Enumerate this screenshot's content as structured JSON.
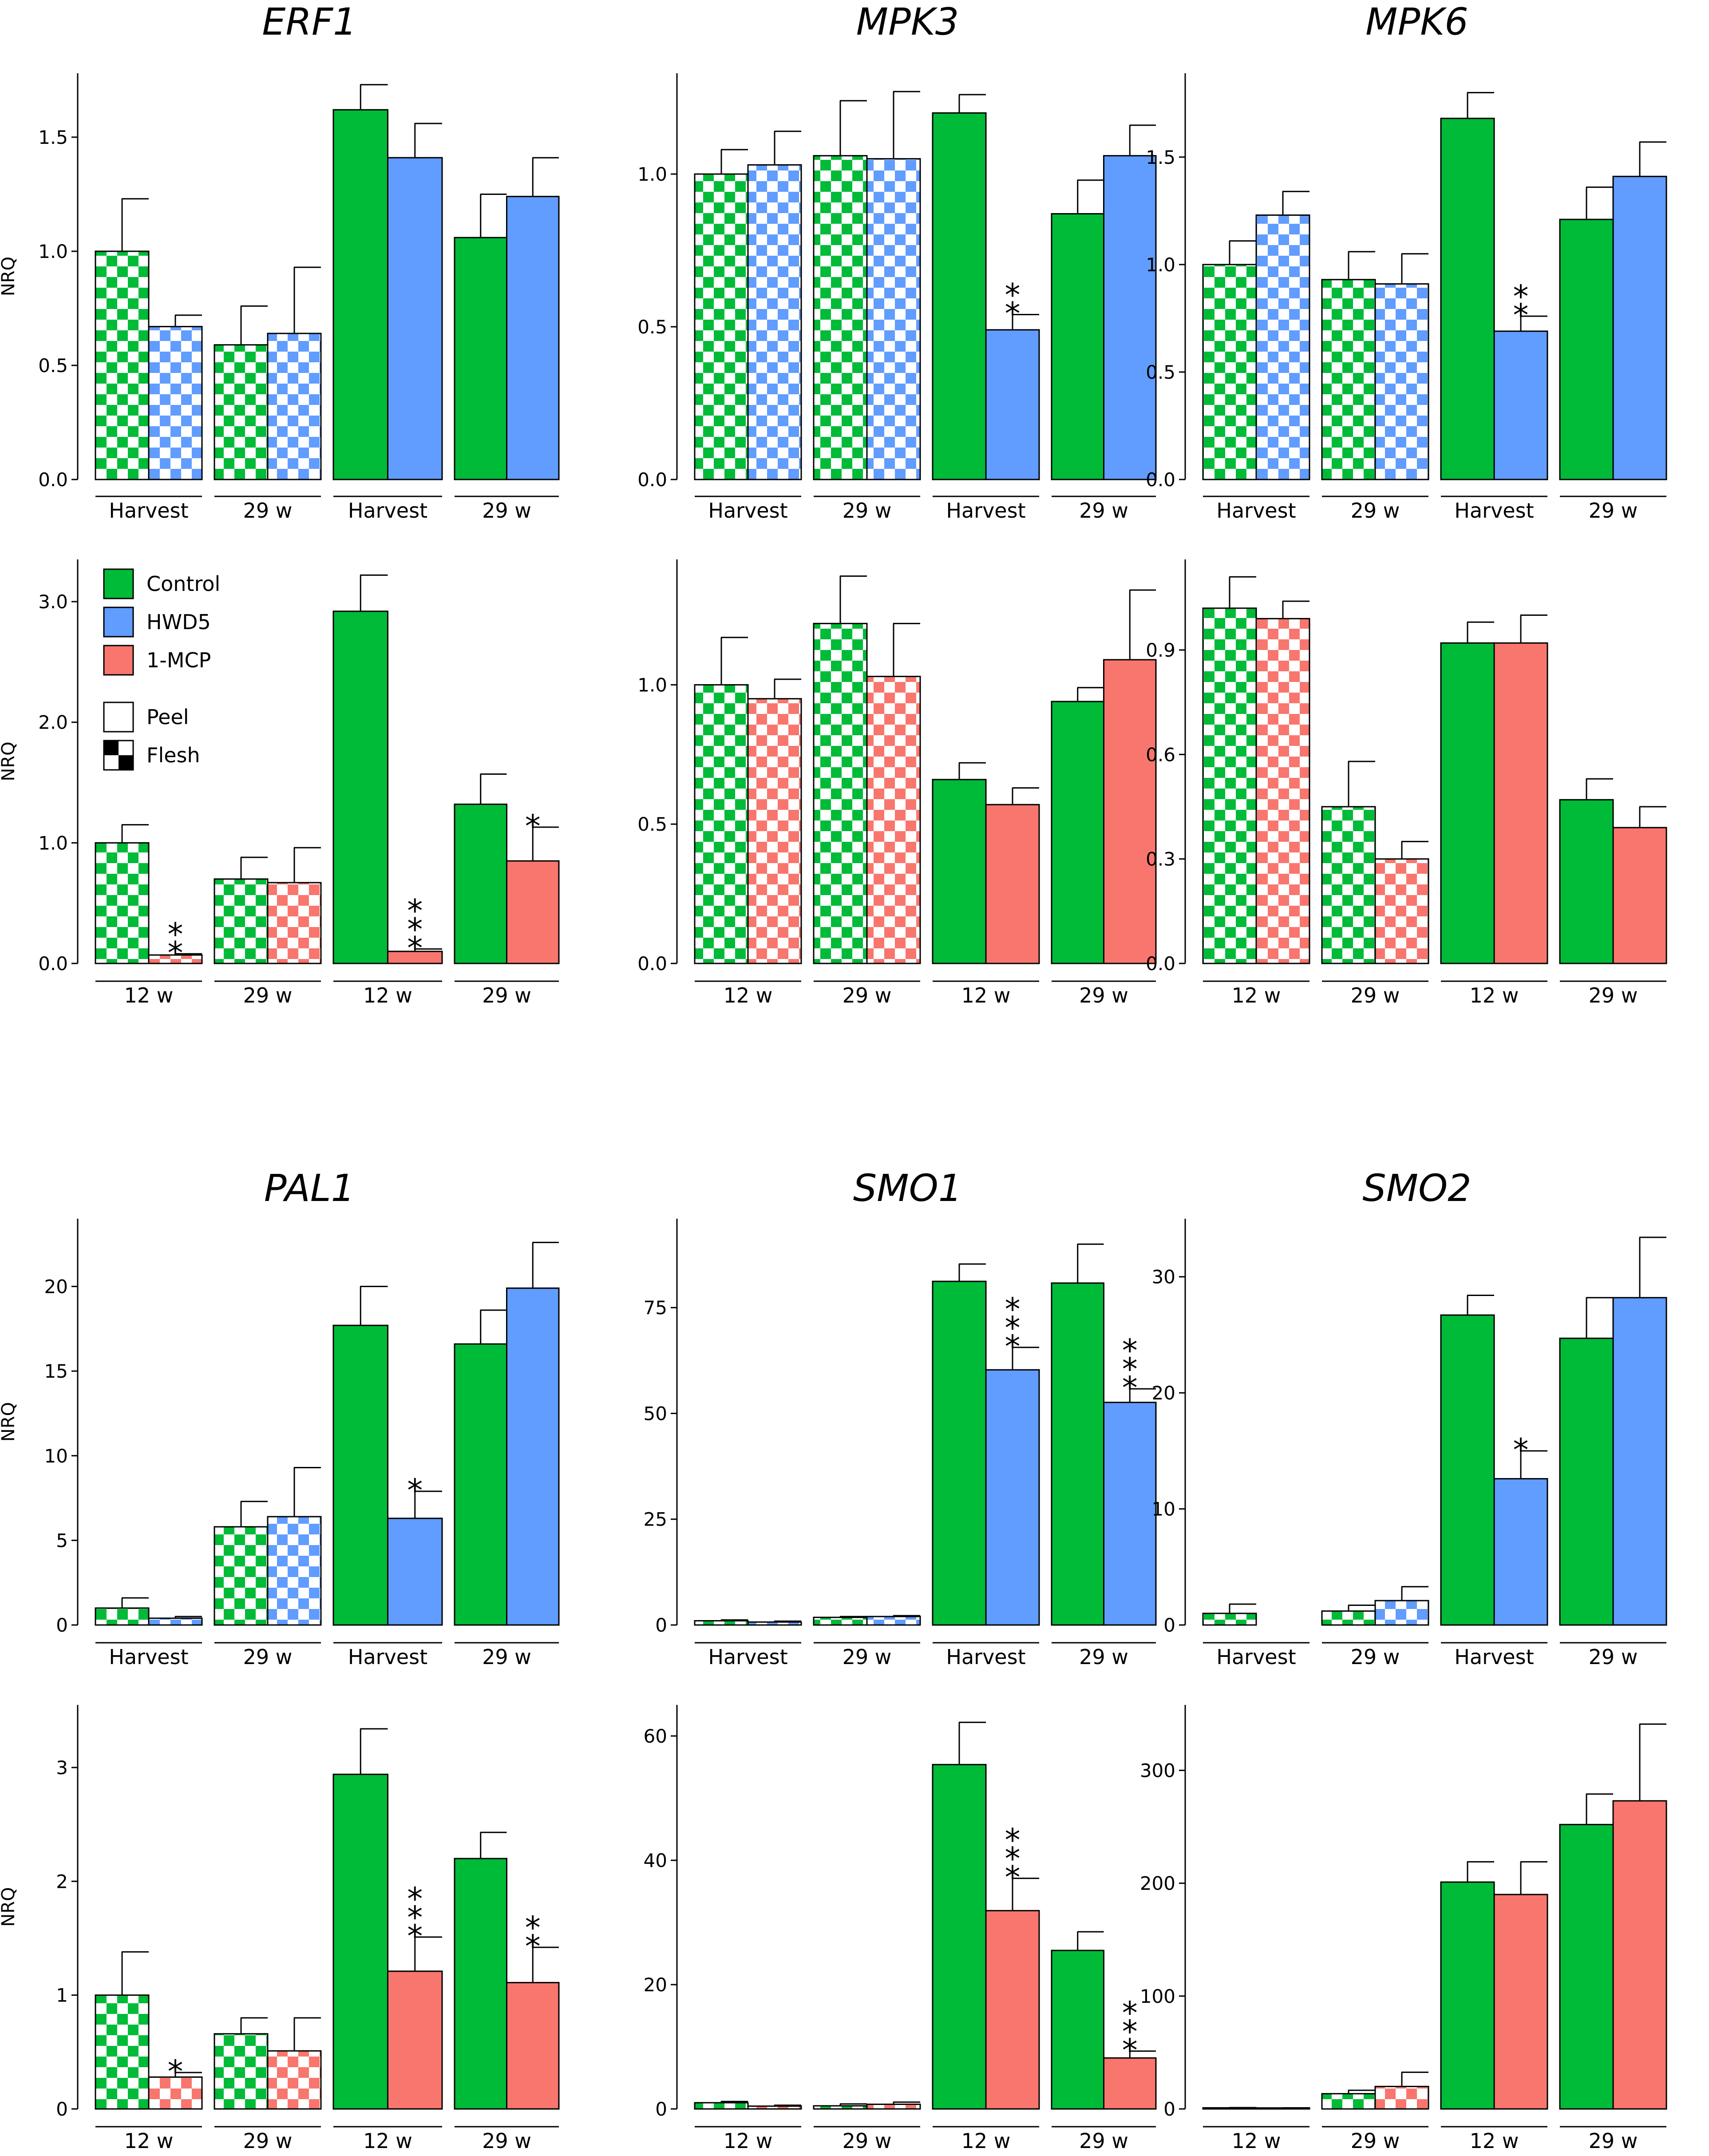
{
  "figure": {
    "ylabel": "NRQ"
  },
  "legend": {
    "treatments": [
      {
        "label": "Control",
        "color": "#00BB38"
      },
      {
        "label": "HWD5",
        "color": "#619CFF"
      },
      {
        "label": "1-MCP",
        "color": "#F8766D"
      }
    ],
    "tissues": [
      {
        "label": "Peel",
        "pattern": "solid"
      },
      {
        "label": "Flesh",
        "pattern": "checker"
      }
    ]
  },
  "colors": {
    "control": "#00BB38",
    "hwd5": "#619CFF",
    "mcp": "#F8766D"
  },
  "chart_data": [
    {
      "type": "bar",
      "gene": "ERF1",
      "title": "ERF1",
      "row": 0,
      "col": 0,
      "treatment": "hwd5",
      "show_ylabel": true,
      "groups": [
        "Harvest",
        "29 w",
        "Harvest",
        "29 w"
      ],
      "tissue": [
        "flesh",
        "flesh",
        "peel",
        "peel"
      ],
      "values": [
        [
          1.0,
          0.67
        ],
        [
          0.59,
          0.64
        ],
        [
          1.62,
          1.41
        ],
        [
          1.06,
          1.24
        ]
      ],
      "errors": [
        [
          1.23,
          0.72
        ],
        [
          0.76,
          0.93
        ],
        [
          1.73,
          1.56
        ],
        [
          1.25,
          1.41
        ]
      ],
      "significance": [
        [
          "",
          ""
        ],
        [
          "",
          ""
        ],
        [
          "",
          ""
        ],
        [
          "",
          ""
        ]
      ],
      "ylim": [
        0,
        1.78
      ],
      "yticks": [
        0.0,
        0.5,
        1.0,
        1.5
      ],
      "tick_labels": [
        "0.0",
        "0.5",
        "1.0",
        "1.5"
      ]
    },
    {
      "type": "bar",
      "gene": "MPK3",
      "title": "MPK3",
      "row": 0,
      "col": 1,
      "treatment": "hwd5",
      "show_ylabel": false,
      "groups": [
        "Harvest",
        "29 w",
        "Harvest",
        "29 w"
      ],
      "tissue": [
        "flesh",
        "flesh",
        "peel",
        "peel"
      ],
      "values": [
        [
          1.0,
          1.03
        ],
        [
          1.06,
          1.05
        ],
        [
          1.2,
          0.49
        ],
        [
          0.87,
          1.06
        ]
      ],
      "errors": [
        [
          1.08,
          1.14
        ],
        [
          1.24,
          1.27
        ],
        [
          1.26,
          0.54
        ],
        [
          0.98,
          1.16
        ]
      ],
      "significance": [
        [
          "",
          ""
        ],
        [
          "",
          ""
        ],
        [
          "",
          "**"
        ],
        [
          "",
          ""
        ]
      ],
      "ylim": [
        0,
        1.33
      ],
      "yticks": [
        0.0,
        0.5,
        1.0
      ],
      "tick_labels": [
        "0.0",
        "0.5",
        "1.0"
      ]
    },
    {
      "type": "bar",
      "gene": "MPK6",
      "title": "MPK6",
      "row": 0,
      "col": 2,
      "treatment": "hwd5",
      "show_ylabel": false,
      "groups": [
        "Harvest",
        "29 w",
        "Harvest",
        "29 w"
      ],
      "tissue": [
        "flesh",
        "flesh",
        "peel",
        "peel"
      ],
      "values": [
        [
          1.0,
          1.23
        ],
        [
          0.93,
          0.91
        ],
        [
          1.68,
          0.69
        ],
        [
          1.21,
          1.41
        ]
      ],
      "errors": [
        [
          1.11,
          1.34
        ],
        [
          1.06,
          1.05
        ],
        [
          1.8,
          0.76
        ],
        [
          1.36,
          1.57
        ]
      ],
      "significance": [
        [
          "",
          ""
        ],
        [
          "",
          ""
        ],
        [
          "",
          "**"
        ],
        [
          "",
          ""
        ]
      ],
      "ylim": [
        0,
        1.89
      ],
      "yticks": [
        0.0,
        0.5,
        1.0,
        1.5
      ],
      "tick_labels": [
        "0.0",
        "0.5",
        "1.0",
        "1.5"
      ]
    },
    {
      "type": "bar",
      "gene": "ERF1",
      "title": "",
      "row": 1,
      "col": 0,
      "treatment": "mcp",
      "show_ylabel": true,
      "groups": [
        "12 w",
        "29 w",
        "12 w",
        "29 w"
      ],
      "tissue": [
        "flesh",
        "flesh",
        "peel",
        "peel"
      ],
      "values": [
        [
          1.0,
          0.07
        ],
        [
          0.7,
          0.67
        ],
        [
          2.92,
          0.1
        ],
        [
          1.32,
          0.85
        ]
      ],
      "errors": [
        [
          1.15,
          0.08
        ],
        [
          0.88,
          0.96
        ],
        [
          3.22,
          0.12
        ],
        [
          1.57,
          1.13
        ]
      ],
      "significance": [
        [
          "",
          "**"
        ],
        [
          "",
          ""
        ],
        [
          "",
          "***"
        ],
        [
          "",
          "*"
        ]
      ],
      "ylim": [
        0,
        3.35
      ],
      "yticks": [
        0.0,
        1.0,
        2.0,
        3.0
      ],
      "tick_labels": [
        "0.0",
        "1.0",
        "2.0",
        "3.0"
      ]
    },
    {
      "type": "bar",
      "gene": "MPK3",
      "title": "",
      "row": 1,
      "col": 1,
      "treatment": "mcp",
      "show_ylabel": false,
      "groups": [
        "12 w",
        "29 w",
        "12 w",
        "29 w"
      ],
      "tissue": [
        "flesh",
        "flesh",
        "peel",
        "peel"
      ],
      "values": [
        [
          1.0,
          0.95
        ],
        [
          1.22,
          1.03
        ],
        [
          0.66,
          0.57
        ],
        [
          0.94,
          1.09
        ]
      ],
      "errors": [
        [
          1.17,
          1.02
        ],
        [
          1.39,
          1.22
        ],
        [
          0.72,
          0.63
        ],
        [
          0.99,
          1.34
        ]
      ],
      "significance": [
        [
          "",
          ""
        ],
        [
          "",
          ""
        ],
        [
          "",
          ""
        ],
        [
          "",
          ""
        ]
      ],
      "ylim": [
        0,
        1.45
      ],
      "yticks": [
        0.0,
        0.5,
        1.0
      ],
      "tick_labels": [
        "0.0",
        "0.5",
        "1.0"
      ]
    },
    {
      "type": "bar",
      "gene": "MPK6",
      "title": "",
      "row": 1,
      "col": 2,
      "treatment": "mcp",
      "show_ylabel": false,
      "groups": [
        "12 w",
        "29 w",
        "12 w",
        "29 w"
      ],
      "tissue": [
        "flesh",
        "flesh",
        "peel",
        "peel"
      ],
      "values": [
        [
          1.02,
          0.99
        ],
        [
          0.45,
          0.3
        ],
        [
          0.92,
          0.92
        ],
        [
          0.47,
          0.39
        ]
      ],
      "errors": [
        [
          1.11,
          1.04
        ],
        [
          0.58,
          0.35
        ],
        [
          0.98,
          1.0
        ],
        [
          0.53,
          0.45
        ]
      ],
      "significance": [
        [
          "",
          ""
        ],
        [
          "",
          ""
        ],
        [
          "",
          ""
        ],
        [
          "",
          ""
        ]
      ],
      "ylim": [
        0,
        1.16
      ],
      "yticks": [
        0.0,
        0.3,
        0.6,
        0.9
      ],
      "tick_labels": [
        "0.0",
        "0.3",
        "0.6",
        "0.9"
      ]
    },
    {
      "type": "bar",
      "gene": "PAL1",
      "title": "PAL1",
      "row": 2,
      "col": 0,
      "treatment": "hwd5",
      "show_ylabel": true,
      "groups": [
        "Harvest",
        "29 w",
        "Harvest",
        "29 w"
      ],
      "tissue": [
        "flesh",
        "flesh",
        "peel",
        "peel"
      ],
      "values": [
        [
          1.0,
          0.4
        ],
        [
          5.8,
          6.4
        ],
        [
          17.7,
          6.3
        ],
        [
          16.6,
          19.9
        ]
      ],
      "errors": [
        [
          1.6,
          0.5
        ],
        [
          7.3,
          9.3
        ],
        [
          20.0,
          7.9
        ],
        [
          18.6,
          22.6
        ]
      ],
      "significance": [
        [
          "",
          ""
        ],
        [
          "",
          ""
        ],
        [
          "",
          "*"
        ],
        [
          "",
          ""
        ]
      ],
      "ylim": [
        0,
        24
      ],
      "yticks": [
        0,
        5,
        10,
        15,
        20
      ],
      "tick_labels": [
        "0",
        "5",
        "10",
        "15",
        "20"
      ]
    },
    {
      "type": "bar",
      "gene": "SMO1",
      "title": "SMO1",
      "row": 2,
      "col": 1,
      "treatment": "hwd5",
      "show_ylabel": false,
      "groups": [
        "Harvest",
        "29 w",
        "Harvest",
        "29 w"
      ],
      "tissue": [
        "flesh",
        "flesh",
        "peel",
        "peel"
      ],
      "values": [
        [
          1.0,
          0.7
        ],
        [
          1.8,
          2.0
        ],
        [
          81.2,
          60.3
        ],
        [
          80.8,
          52.6
        ]
      ],
      "errors": [
        [
          1.2,
          0.9
        ],
        [
          2.0,
          2.2
        ],
        [
          85.3,
          65.6
        ],
        [
          90.0,
          55.8
        ]
      ],
      "significance": [
        [
          "",
          ""
        ],
        [
          "",
          ""
        ],
        [
          "",
          "***"
        ],
        [
          "",
          "***"
        ]
      ],
      "ylim": [
        0,
        96
      ],
      "yticks": [
        0,
        25,
        50,
        75
      ],
      "tick_labels": [
        "0",
        "25",
        "50",
        "75"
      ]
    },
    {
      "type": "bar",
      "gene": "SMO2",
      "title": "SMO2",
      "row": 2,
      "col": 2,
      "treatment": "hwd5",
      "show_ylabel": false,
      "groups": [
        "Harvest",
        "29 w",
        "Harvest",
        "29 w"
      ],
      "tissue": [
        "flesh",
        "flesh",
        "peel",
        "peel"
      ],
      "values": [
        [
          1.0,
          0.0
        ],
        [
          1.2,
          2.1
        ],
        [
          26.7,
          12.6
        ],
        [
          24.7,
          28.2
        ]
      ],
      "errors": [
        [
          1.8,
          0.0
        ],
        [
          1.7,
          3.3
        ],
        [
          28.4,
          15.0
        ],
        [
          28.2,
          33.4
        ]
      ],
      "significance": [
        [
          "",
          ""
        ],
        [
          "",
          ""
        ],
        [
          "",
          "*"
        ],
        [
          "",
          ""
        ]
      ],
      "ylim": [
        0,
        35
      ],
      "yticks": [
        0,
        10,
        20,
        30
      ],
      "tick_labels": [
        "0",
        "10",
        "20",
        "30"
      ]
    },
    {
      "type": "bar",
      "gene": "PAL1",
      "title": "",
      "row": 3,
      "col": 0,
      "treatment": "mcp",
      "show_ylabel": true,
      "groups": [
        "12 w",
        "29 w",
        "12 w",
        "29 w"
      ],
      "tissue": [
        "flesh",
        "flesh",
        "peel",
        "peel"
      ],
      "values": [
        [
          1.0,
          0.28
        ],
        [
          0.66,
          0.51
        ],
        [
          2.94,
          1.21
        ],
        [
          2.2,
          1.11
        ]
      ],
      "errors": [
        [
          1.38,
          0.32
        ],
        [
          0.8,
          0.8
        ],
        [
          3.34,
          1.51
        ],
        [
          2.43,
          1.42
        ]
      ],
      "significance": [
        [
          "",
          "*"
        ],
        [
          "",
          ""
        ],
        [
          "",
          "***"
        ],
        [
          "",
          "**"
        ]
      ],
      "ylim": [
        0,
        3.55
      ],
      "yticks": [
        0,
        1,
        2,
        3
      ],
      "tick_labels": [
        "0",
        "1",
        "2",
        "3"
      ]
    },
    {
      "type": "bar",
      "gene": "SMO1",
      "title": "",
      "row": 3,
      "col": 1,
      "treatment": "mcp",
      "show_ylabel": false,
      "groups": [
        "12 w",
        "29 w",
        "12 w",
        "29 w"
      ],
      "tissue": [
        "flesh",
        "flesh",
        "peel",
        "peel"
      ],
      "values": [
        [
          1.0,
          0.45
        ],
        [
          0.5,
          0.75
        ],
        [
          55.4,
          31.9
        ],
        [
          25.5,
          8.2
        ]
      ],
      "errors": [
        [
          1.2,
          0.6
        ],
        [
          0.8,
          1.1
        ],
        [
          62.2,
          37.1
        ],
        [
          28.5,
          9.3
        ]
      ],
      "significance": [
        [
          "",
          ""
        ],
        [
          "",
          ""
        ],
        [
          "",
          "***"
        ],
        [
          "",
          "***"
        ]
      ],
      "ylim": [
        0,
        65
      ],
      "yticks": [
        0,
        20,
        40,
        60
      ],
      "tick_labels": [
        "0",
        "20",
        "40",
        "60"
      ]
    },
    {
      "type": "bar",
      "gene": "SMO2",
      "title": "",
      "row": 3,
      "col": 2,
      "treatment": "mcp",
      "show_ylabel": false,
      "groups": [
        "12 w",
        "29 w",
        "12 w",
        "29 w"
      ],
      "tissue": [
        "flesh",
        "flesh",
        "peel",
        "peel"
      ],
      "values": [
        [
          1.0,
          0.9
        ],
        [
          13.5,
          19.9
        ],
        [
          201,
          190
        ],
        [
          252,
          273
        ]
      ],
      "errors": [
        [
          1.2,
          1.0
        ],
        [
          16.5,
          32.5
        ],
        [
          219,
          219
        ],
        [
          279,
          341
        ]
      ],
      "significance": [
        [
          "",
          ""
        ],
        [
          "",
          ""
        ],
        [
          "",
          ""
        ],
        [
          "",
          ""
        ]
      ],
      "ylim": [
        0,
        358
      ],
      "yticks": [
        0,
        100,
        200,
        300
      ],
      "tick_labels": [
        "0",
        "100",
        "200",
        "300"
      ]
    }
  ]
}
